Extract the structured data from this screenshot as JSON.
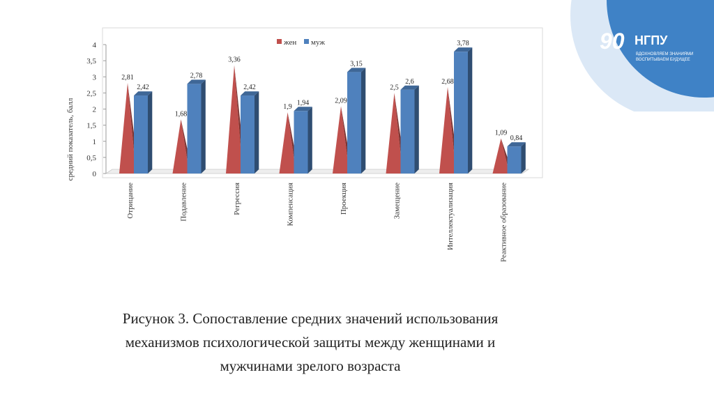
{
  "logo": {
    "brand": "НГПУ",
    "number": "90",
    "slogan_line1": "ВДОХНОВЛЯЕМ ЗНАНИЯМИ",
    "slogan_line2": "ВОСПИТЫВАЕМ БУДУЩЕЕ",
    "colors": {
      "outer": "#dbe8f6",
      "inner": "#3f82c6"
    }
  },
  "chart_data": {
    "type": "bar",
    "ylabel": "средний показатель, балл",
    "xlabel": "",
    "ylim": [
      0,
      4
    ],
    "yticks": [
      "0",
      "0,5",
      "1",
      "1,5",
      "2",
      "2,5",
      "3",
      "3,5",
      "4"
    ],
    "categories": [
      "Отрицание",
      "Подавление",
      "Регрессия",
      "Компенсация",
      "Проекция",
      "Замещение",
      "Интеллектуализация",
      "Реактивное образование"
    ],
    "series": [
      {
        "name": "жен",
        "shape": "cone",
        "color": "#c0504d",
        "values": [
          2.81,
          1.68,
          3.36,
          1.9,
          2.09,
          2.5,
          2.68,
          1.09
        ],
        "labels": [
          "2,81",
          "1,68",
          "3,36",
          "1,9",
          "2,09",
          "2,5",
          "2,68",
          "1,09"
        ]
      },
      {
        "name": "муж",
        "shape": "box",
        "color": "#4f81bd",
        "values": [
          2.42,
          2.78,
          2.42,
          1.94,
          3.15,
          2.6,
          3.78,
          0.84
        ],
        "labels": [
          "2,42",
          "2,78",
          "2,42",
          "1,94",
          "3,15",
          "2,6",
          "3,78",
          "0,84"
        ]
      }
    ],
    "legend_position": "top",
    "grid": false
  },
  "caption": "Рисунок 3. Сопоставление средних значений использования\nмеханизмов психологической защиты между женщинами и\nмужчинами зрелого возраста"
}
